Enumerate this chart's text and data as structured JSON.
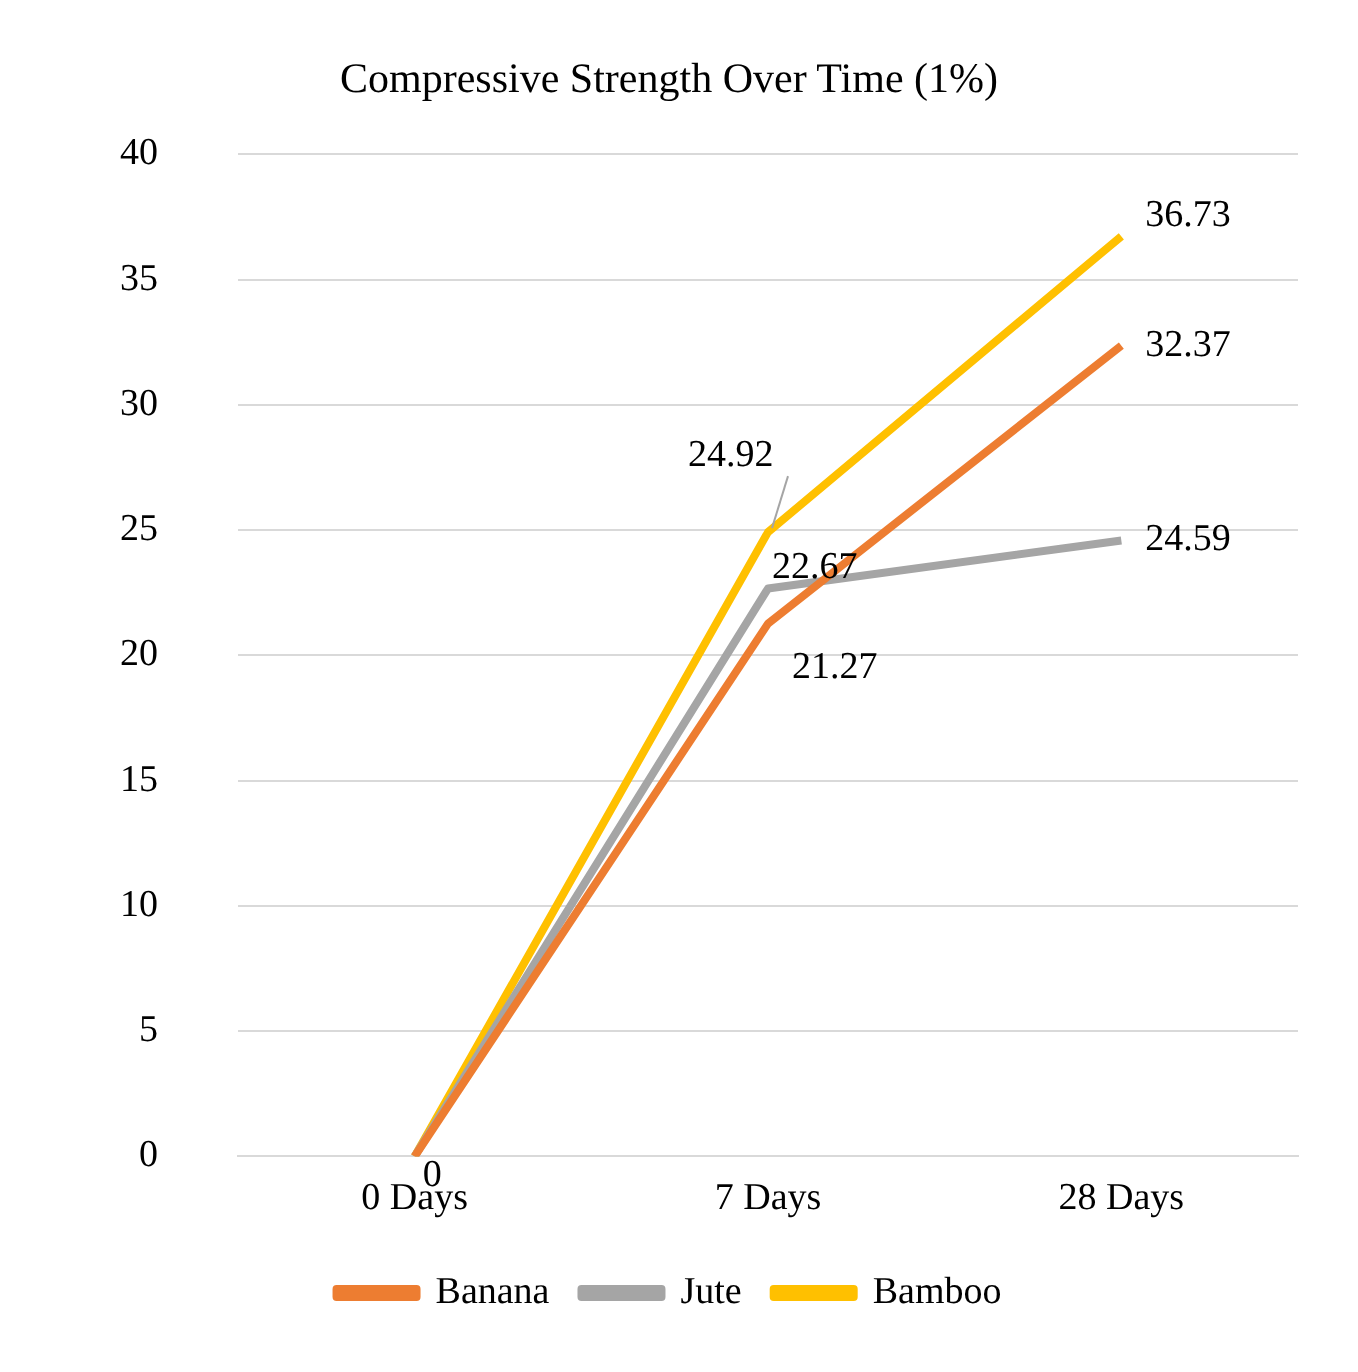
{
  "chart_data": {
    "type": "line",
    "title": "Compressive Strength Over Time (1%)",
    "categories": [
      "0 Days",
      "7 Days",
      "28 Days"
    ],
    "series": [
      {
        "name": "Banana",
        "color": "#ed7d31",
        "values": [
          0,
          21.27,
          32.37
        ],
        "value_labels": [
          "0",
          "21.27",
          "32.37"
        ]
      },
      {
        "name": "Jute",
        "color": "#a5a5a5",
        "values": [
          0,
          22.67,
          24.59
        ],
        "value_labels": [
          null,
          "22.67",
          "24.59"
        ]
      },
      {
        "name": "Bamboo",
        "color": "#ffc000",
        "values": [
          0,
          24.92,
          36.73
        ],
        "value_labels": [
          null,
          "24.92",
          "36.73"
        ]
      }
    ],
    "ylim": [
      0,
      40
    ],
    "yticks": [
      0,
      5,
      10,
      15,
      20,
      25,
      30,
      35,
      40
    ],
    "grid": "y",
    "legend": "bottom",
    "marker": "none",
    "line_style": "solid"
  }
}
